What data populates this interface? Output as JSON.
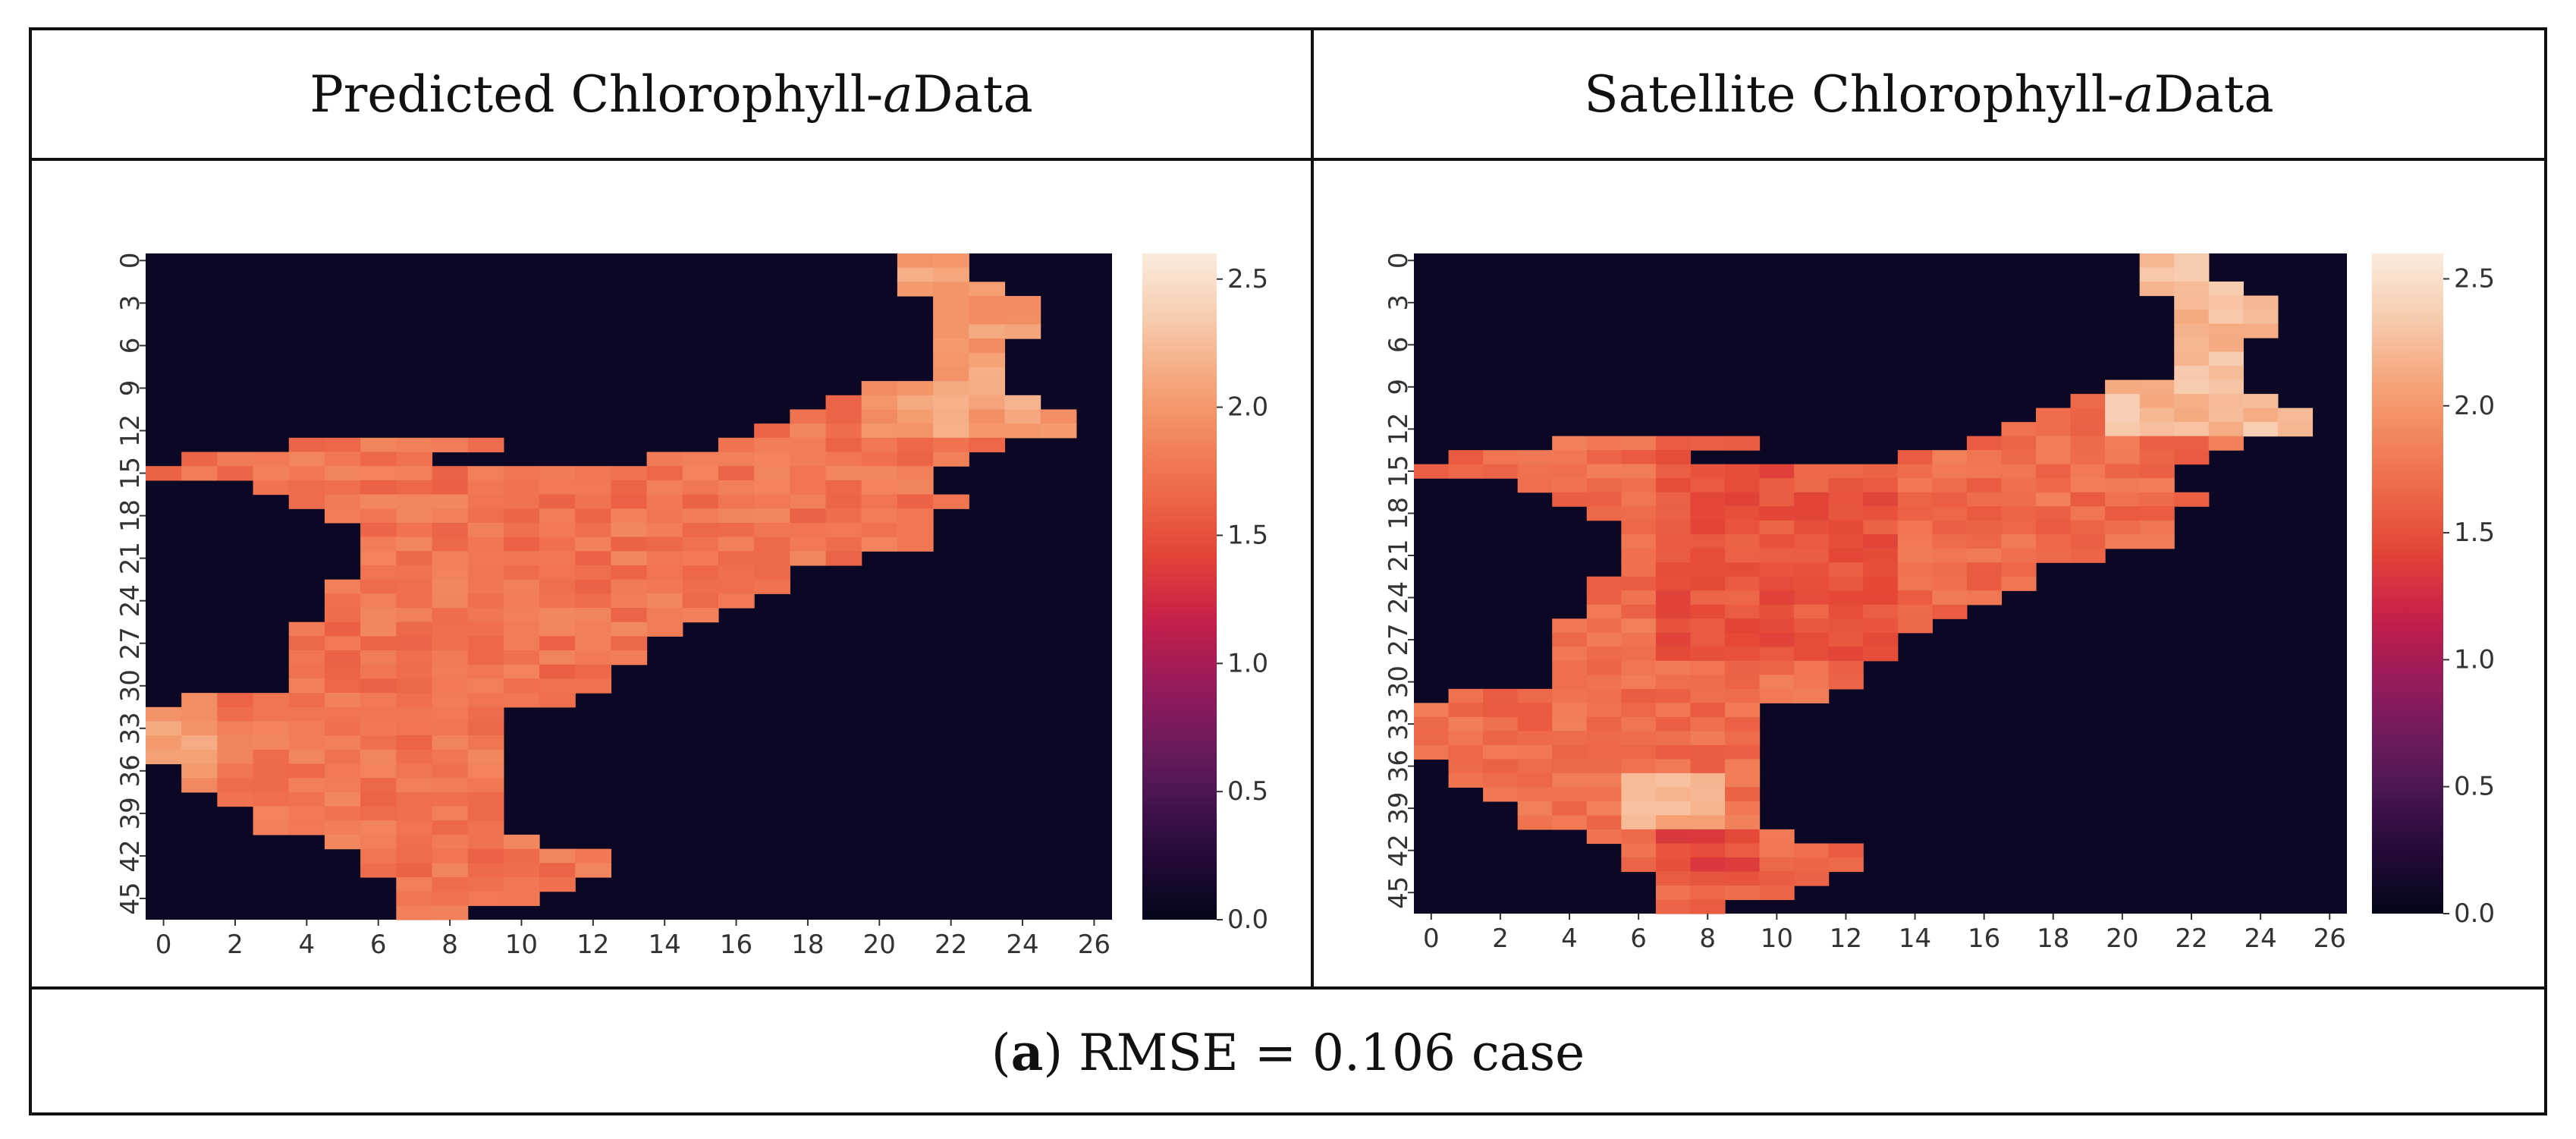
{
  "headers": {
    "left_prefix": "Predicted Chlorophyll-",
    "left_italic": "a",
    "left_suffix": " Data",
    "right_prefix": "Satellite Chlorophyll-",
    "right_italic": "a",
    "right_suffix": " Data"
  },
  "caption": {
    "open": "(",
    "letter": "a",
    "rest": ") RMSE = 0.106 case"
  },
  "colors": {
    "background_cell": "#0b0724",
    "colormap_stops": [
      "#03051a",
      "#2a0b3e",
      "#5a1a5a",
      "#8d1a5e",
      "#c41e4a",
      "#e54836",
      "#f0724f",
      "#f49a6c",
      "#f7c7a8",
      "#faebdd"
    ]
  },
  "chart_data": [
    {
      "type": "heatmap",
      "title": "Predicted Chlorophyll-a Data",
      "n_cols": 27,
      "n_rows": 47,
      "x_ticks": [
        "0",
        "2",
        "4",
        "6",
        "8",
        "10",
        "12",
        "14",
        "16",
        "18",
        "20",
        "22",
        "24",
        "26"
      ],
      "y_ticks": [
        "0",
        "3",
        "6",
        "9",
        "12",
        "15",
        "18",
        "21",
        "24",
        "27",
        "30",
        "33",
        "36",
        "39",
        "42",
        "45"
      ],
      "colorbar_ticks": [
        "2.5",
        "2.0",
        "1.5",
        "1.0",
        "0.5",
        "0.0"
      ],
      "vmin": 0.0,
      "vmax": 2.6,
      "mask_row_segments": [
        [
          [
            21,
            22
          ]
        ],
        [
          [
            21,
            22
          ]
        ],
        [
          [
            21,
            23
          ]
        ],
        [
          [
            22,
            24
          ]
        ],
        [
          [
            22,
            24
          ]
        ],
        [
          [
            22,
            24
          ]
        ],
        [
          [
            22,
            23
          ]
        ],
        [
          [
            22,
            23
          ]
        ],
        [
          [
            22,
            23
          ]
        ],
        [
          [
            20,
            23
          ]
        ],
        [
          [
            19,
            24
          ]
        ],
        [
          [
            18,
            25
          ]
        ],
        [
          [
            17,
            25
          ]
        ],
        [
          [
            4,
            7
          ],
          [
            8,
            9
          ],
          [
            16,
            23
          ]
        ],
        [
          [
            1,
            7
          ],
          [
            14,
            22
          ]
        ],
        [
          [
            0,
            21
          ]
        ],
        [
          [
            3,
            21
          ]
        ],
        [
          [
            4,
            22
          ]
        ],
        [
          [
            5,
            21
          ]
        ],
        [
          [
            6,
            21
          ]
        ],
        [
          [
            6,
            21
          ]
        ],
        [
          [
            6,
            19
          ]
        ],
        [
          [
            6,
            17
          ]
        ],
        [
          [
            5,
            17
          ]
        ],
        [
          [
            5,
            16
          ]
        ],
        [
          [
            5,
            15
          ]
        ],
        [
          [
            4,
            14
          ]
        ],
        [
          [
            4,
            13
          ]
        ],
        [
          [
            4,
            13
          ]
        ],
        [
          [
            4,
            12
          ]
        ],
        [
          [
            4,
            12
          ]
        ],
        [
          [
            1,
            11
          ]
        ],
        [
          [
            0,
            9
          ]
        ],
        [
          [
            0,
            9
          ]
        ],
        [
          [
            0,
            9
          ]
        ],
        [
          [
            0,
            9
          ]
        ],
        [
          [
            1,
            9
          ]
        ],
        [
          [
            1,
            9
          ]
        ],
        [
          [
            2,
            9
          ]
        ],
        [
          [
            3,
            9
          ]
        ],
        [
          [
            3,
            9
          ]
        ],
        [
          [
            5,
            10
          ]
        ],
        [
          [
            6,
            12
          ]
        ],
        [
          [
            6,
            12
          ]
        ],
        [
          [
            7,
            11
          ]
        ],
        [
          [
            7,
            10
          ]
        ],
        [
          [
            7,
            8
          ]
        ]
      ],
      "base_value": 1.75,
      "notes": "Predicted values mostly 1.6-2.0, slightly higher near edges and in the north-east arm"
    },
    {
      "type": "heatmap",
      "title": "Satellite Chlorophyll-a Data",
      "n_cols": 27,
      "n_rows": 47,
      "x_ticks": [
        "0",
        "2",
        "4",
        "6",
        "8",
        "10",
        "12",
        "14",
        "16",
        "18",
        "20",
        "22",
        "24",
        "26"
      ],
      "y_ticks": [
        "0",
        "3",
        "6",
        "9",
        "12",
        "15",
        "18",
        "21",
        "24",
        "27",
        "30",
        "33",
        "36",
        "39",
        "42",
        "45"
      ],
      "colorbar_ticks": [
        "2.5",
        "2.0",
        "1.5",
        "1.0",
        "0.5",
        "0.0"
      ],
      "vmin": 0.0,
      "vmax": 2.6,
      "mask_row_segments": [
        [
          [
            21,
            22
          ]
        ],
        [
          [
            21,
            22
          ]
        ],
        [
          [
            21,
            23
          ]
        ],
        [
          [
            22,
            24
          ]
        ],
        [
          [
            22,
            24
          ]
        ],
        [
          [
            22,
            24
          ]
        ],
        [
          [
            22,
            23
          ]
        ],
        [
          [
            22,
            23
          ]
        ],
        [
          [
            22,
            23
          ]
        ],
        [
          [
            20,
            23
          ]
        ],
        [
          [
            19,
            24
          ]
        ],
        [
          [
            18,
            25
          ]
        ],
        [
          [
            17,
            25
          ]
        ],
        [
          [
            4,
            7
          ],
          [
            8,
            9
          ],
          [
            16,
            23
          ]
        ],
        [
          [
            1,
            7
          ],
          [
            14,
            22
          ]
        ],
        [
          [
            0,
            21
          ]
        ],
        [
          [
            3,
            21
          ]
        ],
        [
          [
            4,
            22
          ]
        ],
        [
          [
            5,
            21
          ]
        ],
        [
          [
            6,
            21
          ]
        ],
        [
          [
            6,
            21
          ]
        ],
        [
          [
            6,
            19
          ]
        ],
        [
          [
            6,
            17
          ]
        ],
        [
          [
            5,
            17
          ]
        ],
        [
          [
            5,
            16
          ]
        ],
        [
          [
            5,
            15
          ]
        ],
        [
          [
            4,
            14
          ]
        ],
        [
          [
            4,
            13
          ]
        ],
        [
          [
            4,
            13
          ]
        ],
        [
          [
            4,
            12
          ]
        ],
        [
          [
            4,
            12
          ]
        ],
        [
          [
            1,
            11
          ]
        ],
        [
          [
            0,
            9
          ]
        ],
        [
          [
            0,
            9
          ]
        ],
        [
          [
            0,
            9
          ]
        ],
        [
          [
            0,
            9
          ]
        ],
        [
          [
            1,
            9
          ]
        ],
        [
          [
            1,
            9
          ]
        ],
        [
          [
            2,
            9
          ]
        ],
        [
          [
            3,
            9
          ]
        ],
        [
          [
            3,
            9
          ]
        ],
        [
          [
            5,
            10
          ]
        ],
        [
          [
            6,
            12
          ]
        ],
        [
          [
            6,
            12
          ]
        ],
        [
          [
            7,
            11
          ]
        ],
        [
          [
            7,
            10
          ]
        ],
        [
          [
            7,
            8
          ]
        ]
      ],
      "base_value": 1.7,
      "notes": "Satellite values more variable: darker (~1.5) center, lighter (~2.3) north-east tip and around rows 38-40"
    }
  ]
}
